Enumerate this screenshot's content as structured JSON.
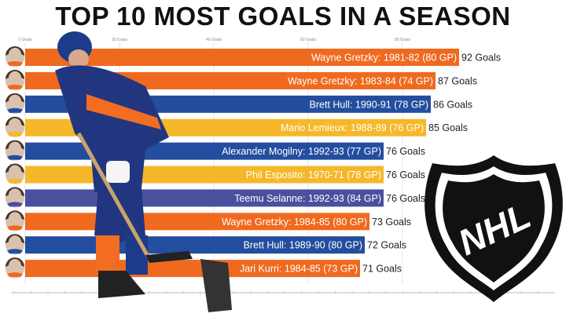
{
  "chart_data": {
    "type": "bar",
    "orientation": "horizontal",
    "title": "TOP 10 MOST GOALS IN A SEASON",
    "xlim": [
      0,
      92
    ],
    "x_ticks": [
      "0 Goals",
      "20 Goals",
      "40 Goals",
      "60 Goals",
      "80 Goals"
    ],
    "x_tick_values": [
      0,
      20,
      40,
      60,
      80
    ],
    "grid": true,
    "categories": [
      "Wayne Gretzky: 1981-82 (80 GP)",
      "Wayne Gretzky: 1983-84 (74 GP)",
      "Brett Hull: 1990-91 (78 GP)",
      "Mario Lemieux: 1988-89 (76 GP)",
      "Alexander Mogilny: 1992-93 (77 GP)",
      "Phil Esposito: 1970-71 (78 GP)",
      "Teemu Selanne: 1992-93 (84 GP)",
      "Wayne Gretzky: 1984-85 (80 GP)",
      "Brett Hull: 1989-90 (80 GP)",
      "Jari Kurri: 1984-85 (73 GP)"
    ],
    "values": [
      92,
      87,
      86,
      85,
      76,
      76,
      76,
      73,
      72,
      71
    ],
    "value_labels": [
      "92 Goals",
      "87 Goals",
      "86 Goals",
      "85 Goals",
      "76 Goals",
      "76 Goals",
      "76 Goals",
      "73 Goals",
      "72 Goals",
      "71 Goals"
    ],
    "colors": [
      "#ef6a1f",
      "#ef6a1f",
      "#234d9e",
      "#f5b82a",
      "#234d9e",
      "#f5b82a",
      "#4a4f9e",
      "#ef6a1f",
      "#234d9e",
      "#ef6a1f"
    ]
  },
  "logo": {
    "text": "NHL"
  }
}
